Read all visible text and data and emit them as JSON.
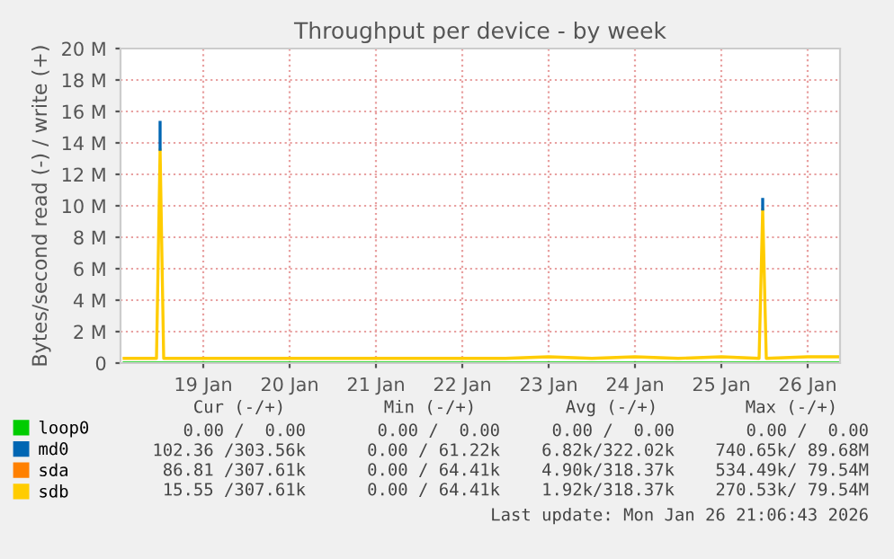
{
  "chart_data": {
    "type": "line",
    "title": "Throughput per device - by week",
    "ylabel": "Bytes/second read (-) / write (+)",
    "x": [
      "2026-01-18T14:00",
      "2026-01-18T20:00",
      "2026-01-18T23:00",
      "2026-01-19T00:00",
      "2026-01-19T01:00",
      "2026-01-19T12:00",
      "2026-01-20T00:00",
      "2026-01-20T12:00",
      "2026-01-21T00:00",
      "2026-01-21T12:00",
      "2026-01-22T00:00",
      "2026-01-22T12:00",
      "2026-01-23T00:00",
      "2026-01-23T12:00",
      "2026-01-24T00:00",
      "2026-01-24T12:00",
      "2026-01-25T00:00",
      "2026-01-25T12:00",
      "2026-01-25T22:30",
      "2026-01-25T23:30",
      "2026-01-26T00:30",
      "2026-01-26T12:00",
      "2026-01-26T21:00"
    ],
    "series": [
      {
        "name": "loop0",
        "color": "#00cc00",
        "values": [
          0,
          0,
          0,
          0,
          0,
          0,
          0,
          0,
          0,
          0,
          0,
          0,
          0,
          0,
          0,
          0,
          0,
          0,
          0,
          0,
          0,
          0,
          0
        ]
      },
      {
        "name": "md0",
        "color": "#0066b3",
        "x": [
          "2026-01-19T00:00",
          "2026-01-19T00:00",
          "2026-01-22T00:00",
          "2026-01-25T23:30",
          "2026-01-25T23:30"
        ],
        "values": [
          13600000,
          15300000,
          null,
          9800000,
          10400000
        ]
      },
      {
        "name": "sda",
        "color": "#ff8000",
        "values": [
          null,
          null,
          null,
          null,
          null,
          null,
          null,
          null,
          null,
          null,
          null,
          null,
          null,
          null,
          null,
          null,
          null,
          null,
          null,
          null,
          null,
          null,
          null
        ]
      },
      {
        "name": "sdb",
        "color": "#ffcc00",
        "values": [
          300000,
          300000,
          300000,
          13600000,
          300000,
          300000,
          300000,
          300000,
          300000,
          300000,
          300000,
          300000,
          300000,
          400000,
          300000,
          400000,
          300000,
          400000,
          300000,
          9800000,
          300000,
          400000,
          400000
        ]
      }
    ],
    "xlim": [
      "2026-01-18T13:00",
      "2026-01-26T21:00"
    ],
    "xticks": [
      {
        "value": "2026-01-19T12:00",
        "label": "19 Jan"
      },
      {
        "value": "2026-01-20T12:00",
        "label": "20 Jan"
      },
      {
        "value": "2026-01-21T12:00",
        "label": "21 Jan"
      },
      {
        "value": "2026-01-22T12:00",
        "label": "22 Jan"
      },
      {
        "value": "2026-01-23T12:00",
        "label": "23 Jan"
      },
      {
        "value": "2026-01-24T12:00",
        "label": "24 Jan"
      },
      {
        "value": "2026-01-25T12:00",
        "label": "25 Jan"
      },
      {
        "value": "2026-01-26T12:00",
        "label": "26 Jan"
      }
    ],
    "ylim": [
      0,
      20000000
    ],
    "yticks": [
      0,
      {
        "value": 2000000,
        "label": "2 M"
      },
      {
        "value": 4000000,
        "label": "4 M"
      },
      {
        "value": 6000000,
        "label": "6 M"
      },
      {
        "value": 8000000,
        "label": "8 M"
      },
      {
        "value": 10000000,
        "label": "10 M"
      },
      {
        "value": 12000000,
        "label": "12 M"
      },
      {
        "value": 14000000,
        "label": "14 M"
      },
      {
        "value": 16000000,
        "label": "16 M"
      },
      {
        "value": 18000000,
        "label": "18 M"
      },
      {
        "value": 20000000,
        "label": "20 M"
      }
    ],
    "grid": true,
    "legend": "bottom",
    "marker": "none",
    "line_style": "solid",
    "annotations": [
      "Cur (-/+)",
      "Min (-/+)",
      "Avg (-/+)",
      "Max (-/+)",
      "0.00 /  0.00",
      "0.00 /  0.00",
      "0.00 /  0.00",
      "0.00 /  0.00",
      "102.36 /303.56k",
      "0.00 / 61.22k",
      "6.82k/322.02k",
      "740.65k/ 89.68M",
      "86.81 /307.61k",
      "0.00 / 64.41k",
      "4.90k/318.37k",
      "534.49k/ 79.54M",
      "15.55 /307.61k",
      "0.00 / 64.41k",
      "1.92k/318.37k",
      "270.53k/ 79.54M",
      "Last update: Mon Jan 26 21:06:43 2026"
    ]
  }
}
